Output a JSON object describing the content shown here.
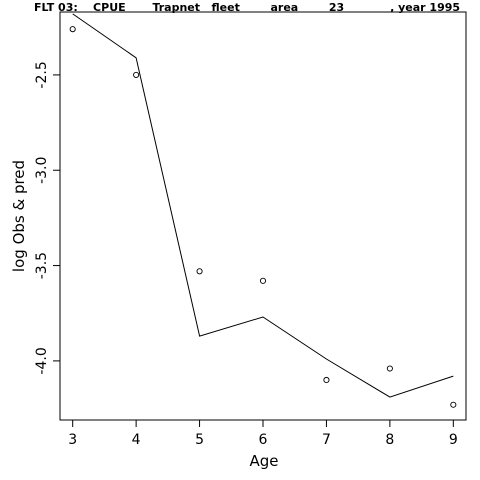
{
  "chart_data": {
    "type": "line",
    "title": "FLT 03:    CPUE       Trapnet   fleet        area        23            , year 1995",
    "xlabel": "Age",
    "ylabel": "log Obs & pred",
    "x": [
      3,
      4,
      5,
      6,
      7,
      8,
      9
    ],
    "x_ticks": [
      "3",
      "4",
      "5",
      "6",
      "7",
      "8",
      "9"
    ],
    "y_ticks": [
      "-2.5",
      "-3.0",
      "-3.5",
      "-4.0"
    ],
    "y_tick_values": [
      -2.5,
      -3.0,
      -3.5,
      -4.0
    ],
    "xlim": [
      2.8,
      9.2
    ],
    "ylim": [
      -4.31,
      -2.17
    ],
    "series": [
      {
        "style": "points",
        "values": [
          -2.26,
          -2.5,
          -3.53,
          -3.58,
          -4.1,
          -4.04,
          -4.23
        ]
      },
      {
        "style": "line",
        "values": [
          -2.18,
          -2.41,
          -3.87,
          -3.77,
          -3.99,
          -4.19,
          -4.08
        ]
      }
    ],
    "grid": false,
    "colors": {
      "line": "#000000",
      "points": "#000000",
      "axis": "#000000"
    }
  }
}
